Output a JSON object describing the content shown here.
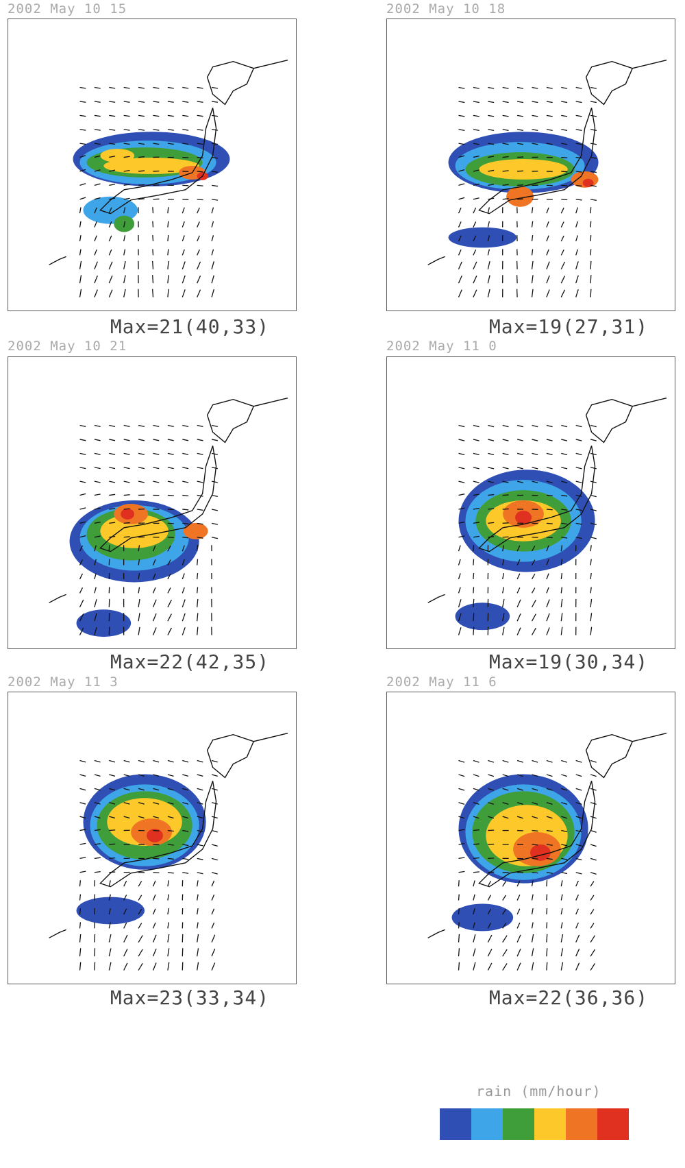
{
  "chart_data": {
    "type": "heatmap",
    "description_units": "rain (mm/hour)",
    "panels": [
      {
        "title": "2002 May 10 15",
        "max_label": "Max=21(40,33)",
        "max": 21,
        "max_loc": [
          40,
          33
        ]
      },
      {
        "title": "2002 May 10 18",
        "max_label": "Max=19(27,31)",
        "max": 19,
        "max_loc": [
          27,
          31
        ]
      },
      {
        "title": "2002 May 10 21",
        "max_label": "Max=22(42,35)",
        "max": 22,
        "max_loc": [
          42,
          35
        ]
      },
      {
        "title": "2002 May 11 0",
        "max_label": "Max=19(30,34)",
        "max": 19,
        "max_loc": [
          30,
          34
        ]
      },
      {
        "title": "2002 May 11 3",
        "max_label": "Max=23(33,34)",
        "max": 23,
        "max_loc": [
          33,
          34
        ]
      },
      {
        "title": "2002 May 11 6",
        "max_label": "Max=22(36,36)",
        "max": 22,
        "max_loc": [
          36,
          36
        ]
      }
    ],
    "legend": {
      "title": "rain (mm/hour)",
      "colors": [
        "#2f4fb5",
        "#3ea6e8",
        "#3f9e3a",
        "#fdc82a",
        "#ef7424",
        "#e0301f"
      ]
    }
  }
}
